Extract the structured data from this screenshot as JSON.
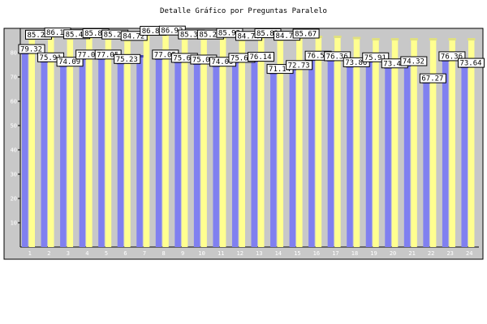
{
  "chart_data": {
    "type": "bar",
    "title": "Detalle Gráfico por Preguntas Paralelo",
    "xlabel": "",
    "ylabel": "",
    "ylim": [
      0,
      90
    ],
    "yticks": [
      10,
      20,
      30,
      40,
      50,
      60,
      70,
      80
    ],
    "categories": [
      "1",
      "2",
      "3",
      "4",
      "5",
      "6",
      "7",
      "8",
      "9",
      "10",
      "11",
      "12",
      "13",
      "14",
      "15",
      "16",
      "17",
      "18",
      "19",
      "20",
      "21",
      "22",
      "23",
      "24"
    ],
    "series": [
      {
        "values": [
          79.32,
          75.91,
          74.09,
          77.05,
          77.05,
          75.23,
          78.0,
          77.05,
          75.68,
          75.0,
          74.09,
          75.68,
          76.14,
          71.14,
          72.73,
          76.59,
          76.36,
          73.86,
          75.91,
          73.41,
          74.32,
          67.27,
          76.36,
          73.64
        ],
        "color": "#8080f0"
      },
      {
        "values": [
          85.23,
          86.14,
          85.4,
          85.84,
          85.29,
          84.72,
          86.84,
          86.93,
          85.33,
          85.28,
          85.93,
          84.74,
          85.83,
          84.79,
          85.67,
          86.0,
          86.0,
          85.5,
          85.0,
          85.0,
          85.0,
          85.0,
          85.0,
          85.0
        ],
        "color": "#ffff90"
      }
    ],
    "data_labels": [
      [
        "79.32",
        "85.23"
      ],
      [
        "75.91",
        "86.14"
      ],
      [
        "74.09",
        "85.40"
      ],
      [
        "77.05",
        "85.84"
      ],
      [
        "77.05",
        "85.29"
      ],
      [
        "75.23",
        "84.72"
      ],
      [
        "",
        "86.84"
      ],
      [
        "77.05",
        "86.93"
      ],
      [
        "75.68",
        "85.33"
      ],
      [
        "75.00",
        "85.28"
      ],
      [
        "74.09",
        "85.93"
      ],
      [
        "75.68",
        "84.74"
      ],
      [
        "76.14",
        "85.83"
      ],
      [
        "71.14",
        "84.79"
      ],
      [
        "72.73",
        "85.67"
      ],
      [
        "76.59",
        ""
      ],
      [
        "76.36",
        ""
      ],
      [
        "73.86",
        ""
      ],
      [
        "75.91",
        ""
      ],
      [
        "73.41",
        ""
      ],
      [
        "74.32",
        ""
      ],
      [
        "67.27",
        ""
      ],
      [
        "76.36",
        ""
      ],
      [
        "73.64",
        ""
      ]
    ],
    "grid": false,
    "legend": "none",
    "plot_background": "#c8c8c8"
  }
}
